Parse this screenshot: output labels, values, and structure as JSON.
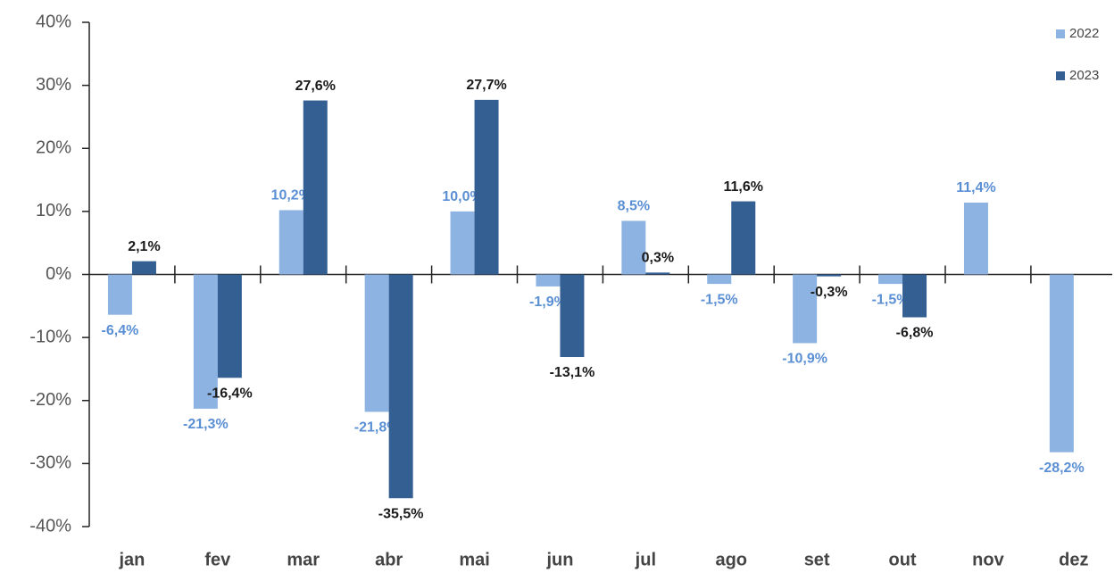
{
  "chart_data": {
    "type": "bar",
    "categories": [
      "jan",
      "fev",
      "mar",
      "abr",
      "mai",
      "jun",
      "jul",
      "ago",
      "set",
      "out",
      "nov",
      "dez"
    ],
    "series": [
      {
        "name": "2022",
        "color": "#8db3e2",
        "values": [
          -6.4,
          -21.3,
          10.2,
          -21.8,
          10.0,
          -1.9,
          8.5,
          -1.5,
          -10.9,
          -1.5,
          11.4,
          -28.2
        ],
        "value_labels": [
          "-6,4%",
          "-21,3%",
          "10,2%",
          "-21,8%",
          "10,0%",
          "-1,9%",
          "8,5%",
          "-1,5%",
          "-10,9%",
          "-1,5%",
          "11,4%",
          "-28,2%"
        ]
      },
      {
        "name": "2023",
        "color": "#345f93",
        "values": [
          2.1,
          -16.4,
          27.6,
          -35.5,
          27.7,
          -13.1,
          0.3,
          11.6,
          -0.3,
          -6.8,
          null,
          null
        ],
        "value_labels": [
          "2,1%",
          "-16,4%",
          "27,6%",
          "-35,5%",
          "27,7%",
          "-13,1%",
          "0,3%",
          "11,6%",
          "-0,3%",
          "-6,8%",
          null,
          null
        ]
      }
    ],
    "ylim": [
      -40,
      40
    ],
    "yticks": [
      {
        "value": -40,
        "label": "-40%"
      },
      {
        "value": -30,
        "label": "-30%"
      },
      {
        "value": -20,
        "label": "-20%"
      },
      {
        "value": -10,
        "label": "-10%"
      },
      {
        "value": 0,
        "label": "0%"
      },
      {
        "value": 10,
        "label": "10%"
      },
      {
        "value": 20,
        "label": "20%"
      },
      {
        "value": 30,
        "label": "30%"
      },
      {
        "value": 40,
        "label": "40%"
      }
    ],
    "grid": false,
    "legend": "top-right"
  }
}
